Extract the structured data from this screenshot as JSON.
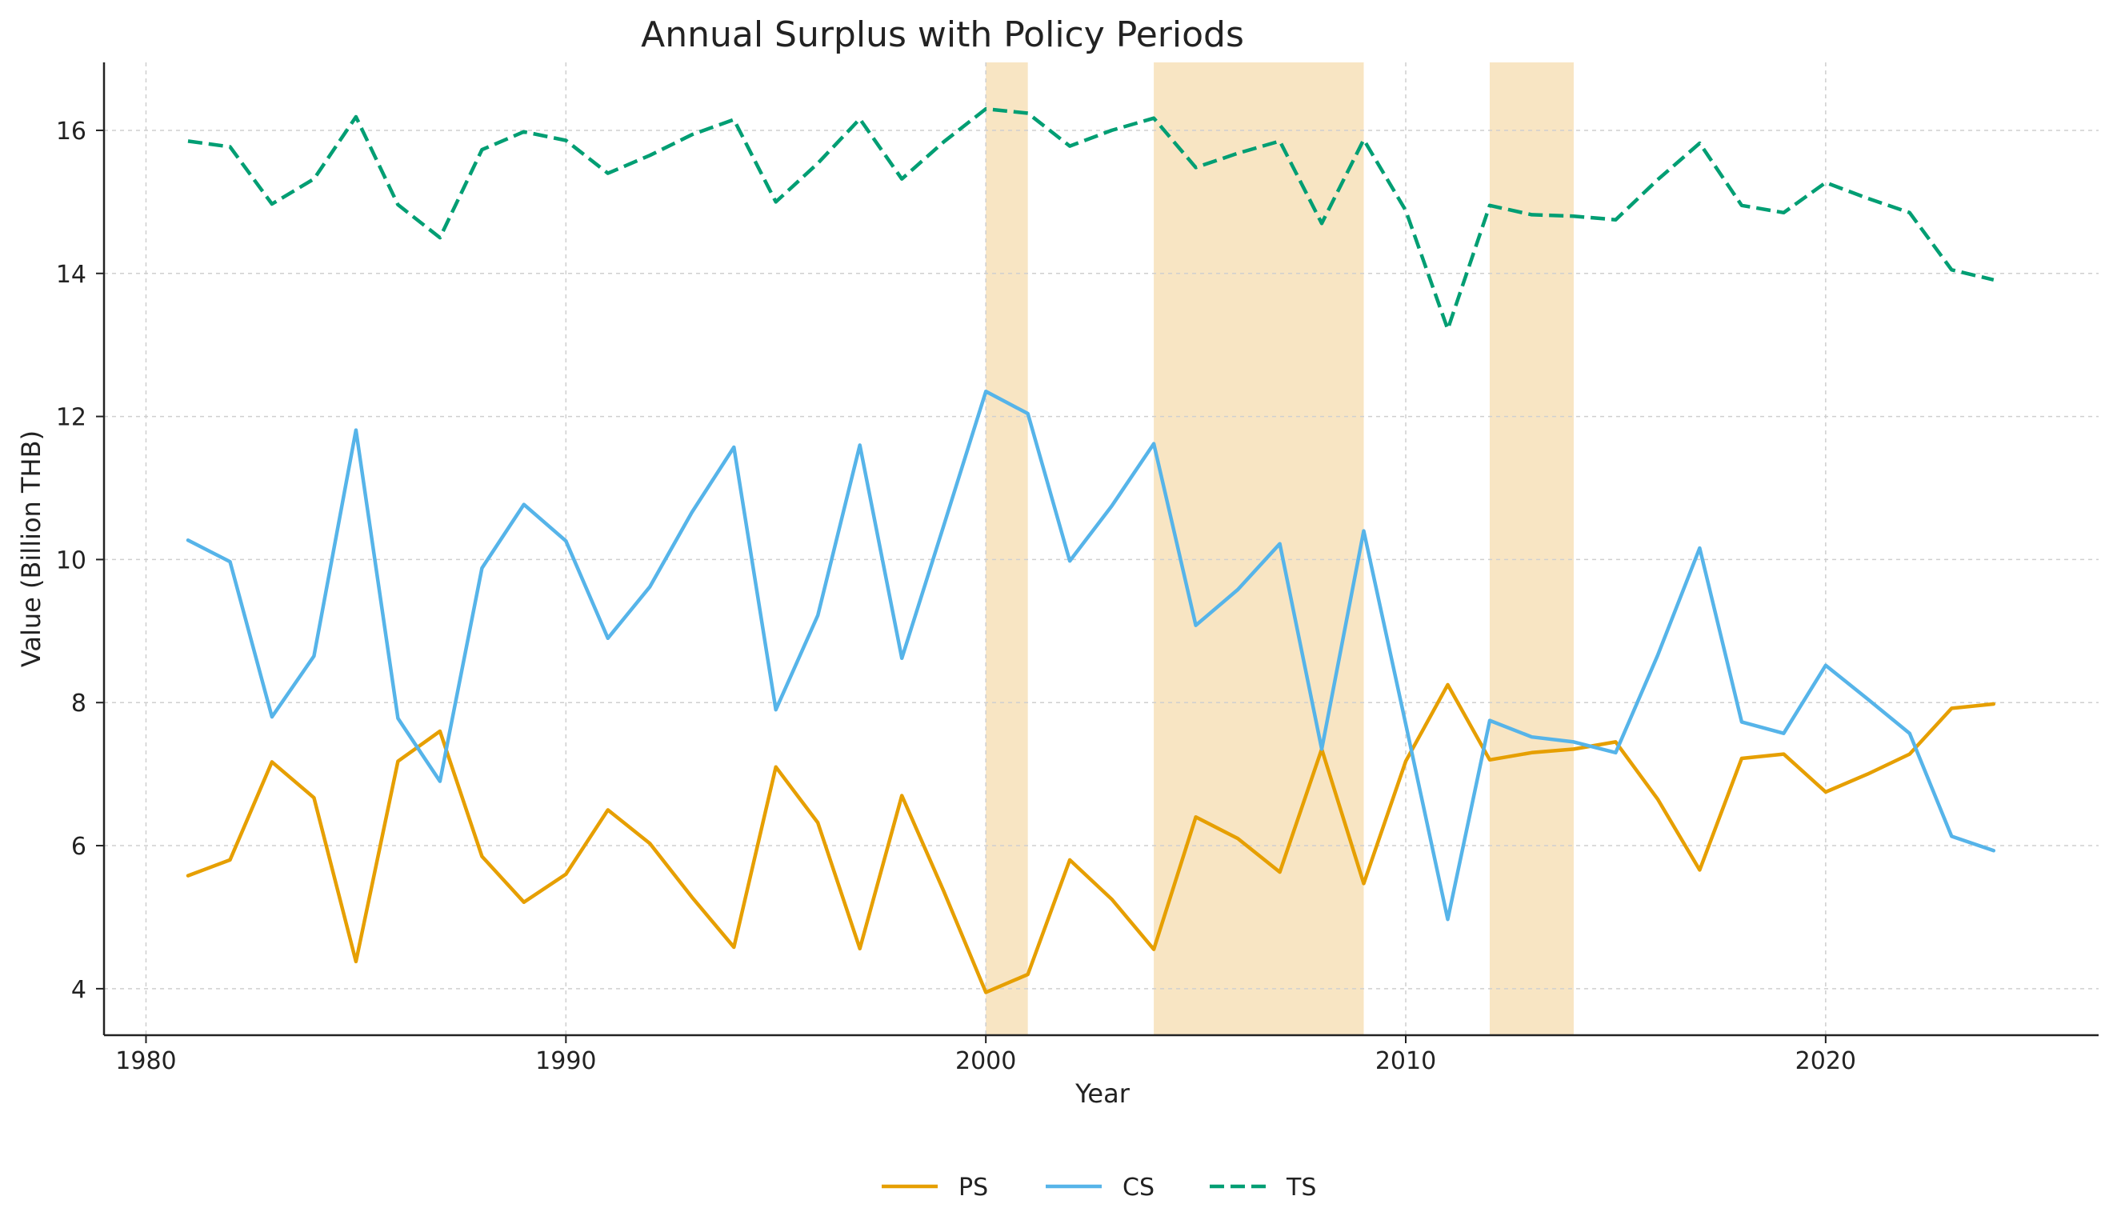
{
  "chart_data": {
    "type": "line",
    "title": "Annual Surplus with Policy Periods",
    "xlabel": "Year",
    "ylabel": "Value (Billion THB)",
    "xlim": [
      1979,
      2026.5
    ],
    "ylim": [
      3.35,
      16.95
    ],
    "xticks": [
      1980,
      1990,
      2000,
      2010,
      2020
    ],
    "yticks": [
      4,
      6,
      8,
      10,
      12,
      14,
      16
    ],
    "grid": true,
    "legend_position": "bottom-center",
    "policy_periods": [
      [
        2000,
        2001
      ],
      [
        2004,
        2009
      ],
      [
        2012,
        2014
      ]
    ],
    "policy_color": "#f8e5c3",
    "x": [
      1981,
      1982,
      1983,
      1984,
      1985,
      1986,
      1987,
      1988,
      1989,
      1990,
      1991,
      1992,
      1993,
      1994,
      1995,
      1996,
      1997,
      1998,
      1999,
      2000,
      2001,
      2002,
      2003,
      2004,
      2005,
      2006,
      2007,
      2008,
      2009,
      2010,
      2011,
      2012,
      2013,
      2014,
      2015,
      2016,
      2017,
      2018,
      2019,
      2020,
      2021,
      2022,
      2023,
      2024
    ],
    "series": [
      {
        "name": "PS",
        "color": "#e69f00",
        "dash": "solid",
        "values": [
          5.58,
          5.8,
          7.17,
          6.67,
          4.38,
          7.18,
          7.6,
          5.85,
          5.21,
          5.6,
          6.5,
          6.03,
          5.28,
          4.58,
          7.1,
          6.32,
          4.56,
          6.7,
          5.36,
          3.95,
          4.2,
          5.8,
          5.25,
          4.55,
          6.4,
          6.1,
          5.63,
          7.35,
          5.47,
          7.18,
          8.25,
          7.2,
          7.3,
          7.35,
          7.45,
          6.65,
          5.66,
          7.22,
          7.28,
          6.75,
          7.0,
          7.28,
          7.92,
          7.98
        ]
      },
      {
        "name": "CS",
        "color": "#56b4e9",
        "dash": "solid",
        "values": [
          10.27,
          9.97,
          7.8,
          8.65,
          11.81,
          7.78,
          6.9,
          9.88,
          10.77,
          10.26,
          8.9,
          9.62,
          10.66,
          11.57,
          7.9,
          9.22,
          11.6,
          8.62,
          10.48,
          12.35,
          12.04,
          9.98,
          10.75,
          11.62,
          9.08,
          9.58,
          10.22,
          7.35,
          10.4,
          7.7,
          4.97,
          7.75,
          7.52,
          7.45,
          7.3,
          8.66,
          10.16,
          7.73,
          7.57,
          8.52,
          8.05,
          7.57,
          6.13,
          5.93
        ]
      },
      {
        "name": "TS",
        "color": "#009e73",
        "dash": "dashed",
        "values": [
          15.85,
          15.77,
          14.97,
          15.32,
          16.19,
          14.96,
          14.5,
          15.73,
          15.98,
          15.86,
          15.4,
          15.65,
          15.94,
          16.15,
          15.0,
          15.54,
          16.16,
          15.32,
          15.84,
          16.3,
          16.24,
          15.78,
          16.0,
          16.17,
          15.48,
          15.68,
          15.85,
          14.7,
          15.87,
          14.88,
          13.22,
          14.95,
          14.82,
          14.8,
          14.75,
          15.31,
          15.82,
          14.95,
          14.85,
          15.27,
          15.05,
          14.85,
          14.05,
          13.91
        ]
      }
    ]
  }
}
